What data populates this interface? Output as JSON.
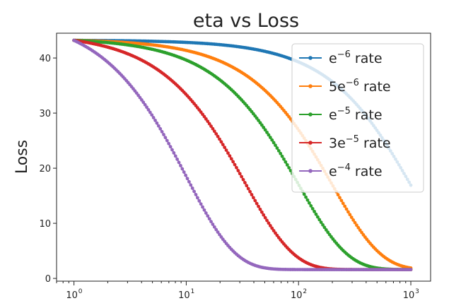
{
  "chart_data": {
    "type": "line",
    "title": "eta vs Loss",
    "xlabel": "",
    "ylabel": "Loss",
    "xscale": "log",
    "xlim": [
      0.7,
      1500
    ],
    "ylim": [
      -0.5,
      44.5
    ],
    "x_ticks": [
      {
        "value": 1,
        "base": "10",
        "exp": "0"
      },
      {
        "value": 10,
        "base": "10",
        "exp": "1"
      },
      {
        "value": 100,
        "base": "10",
        "exp": "2"
      },
      {
        "value": 1000,
        "base": "10",
        "exp": "3"
      }
    ],
    "y_ticks": [
      0,
      10,
      20,
      30,
      40
    ],
    "grid": false,
    "legend_position": "right",
    "x_range": [
      1,
      1000
    ],
    "series": [
      {
        "base": "e",
        "exp": "−6",
        "suffix": " rate",
        "color": "#1f77b4",
        "curve": {
          "L0": 43.2,
          "Lmin": 1.6,
          "slope": -0.001
        }
      },
      {
        "base": "5e",
        "exp": "−6",
        "suffix": " rate",
        "color": "#ff7f0e",
        "curve": {
          "L0": 43.2,
          "Lmin": 1.6,
          "slope": -0.005
        }
      },
      {
        "base": "e",
        "exp": "−5",
        "suffix": " rate",
        "color": "#2ca02c",
        "curve": {
          "L0": 43.2,
          "Lmin": 1.6,
          "slope": -0.01
        }
      },
      {
        "base": "3e",
        "exp": "−5",
        "suffix": " rate",
        "color": "#d62728",
        "curve": {
          "L0": 43.2,
          "Lmin": 1.6,
          "slope": -0.03
        }
      },
      {
        "base": "e",
        "exp": "−4",
        "suffix": " rate",
        "color": "#9467bd",
        "curve": {
          "L0": 43.2,
          "Lmin": 1.6,
          "slope": -0.1
        }
      }
    ]
  }
}
